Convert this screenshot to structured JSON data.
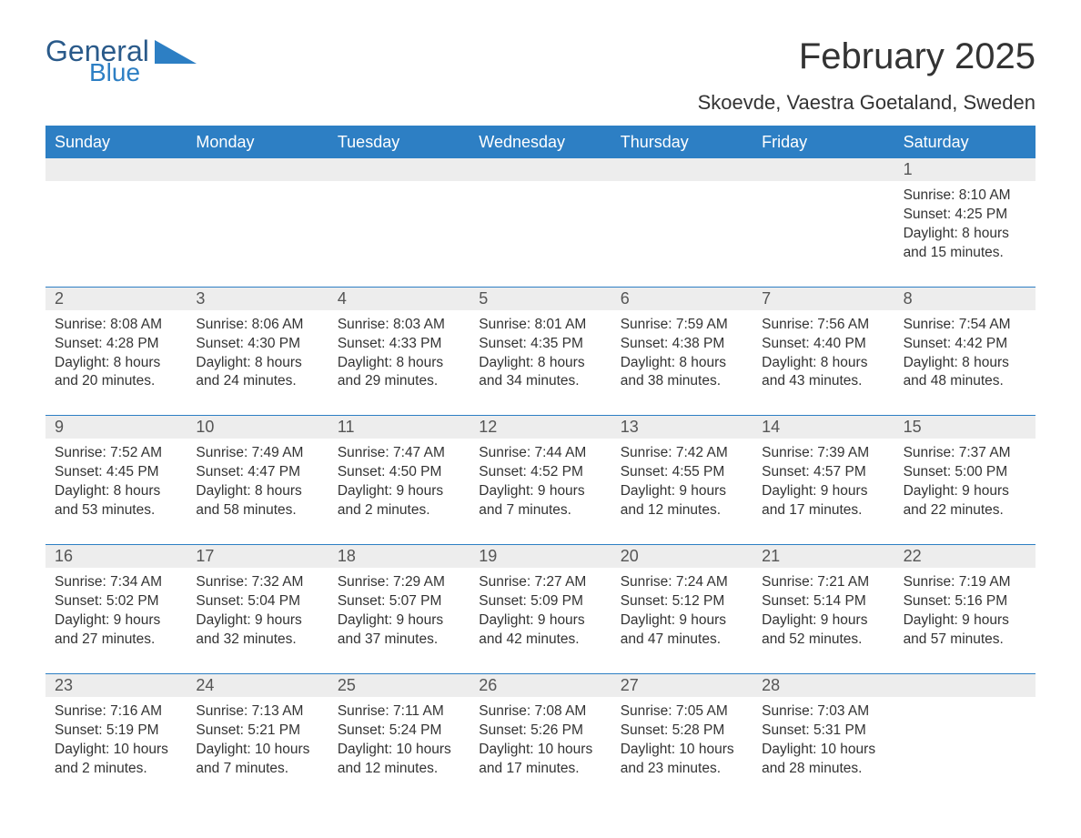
{
  "brand": {
    "word1": "General",
    "word2": "Blue",
    "word1_color": "#2a5a8a",
    "word2_color": "#2d7fc4",
    "tri_color": "#2d7fc4"
  },
  "title": "February 2025",
  "subtitle": "Skoevde, Vaestra Goetaland, Sweden",
  "colors": {
    "header_bg": "#2d7fc4",
    "header_text": "#ffffff",
    "daynum_bg": "#ededed",
    "rule": "#2d7fc4",
    "body_text": "#333333",
    "background": "#ffffff"
  },
  "typography": {
    "title_fontsize": 40,
    "subtitle_fontsize": 22,
    "dow_fontsize": 18,
    "daynum_fontsize": 18,
    "body_fontsize": 15.5,
    "font_family": "Segoe UI"
  },
  "dow": [
    "Sunday",
    "Monday",
    "Tuesday",
    "Wednesday",
    "Thursday",
    "Friday",
    "Saturday"
  ],
  "layout": {
    "columns": 7,
    "weeks": 5,
    "first_day_column": 6
  },
  "weeks": [
    [
      null,
      null,
      null,
      null,
      null,
      null,
      {
        "n": "1",
        "sunrise": "Sunrise: 8:10 AM",
        "sunset": "Sunset: 4:25 PM",
        "day1": "Daylight: 8 hours",
        "day2": "and 15 minutes."
      }
    ],
    [
      {
        "n": "2",
        "sunrise": "Sunrise: 8:08 AM",
        "sunset": "Sunset: 4:28 PM",
        "day1": "Daylight: 8 hours",
        "day2": "and 20 minutes."
      },
      {
        "n": "3",
        "sunrise": "Sunrise: 8:06 AM",
        "sunset": "Sunset: 4:30 PM",
        "day1": "Daylight: 8 hours",
        "day2": "and 24 minutes."
      },
      {
        "n": "4",
        "sunrise": "Sunrise: 8:03 AM",
        "sunset": "Sunset: 4:33 PM",
        "day1": "Daylight: 8 hours",
        "day2": "and 29 minutes."
      },
      {
        "n": "5",
        "sunrise": "Sunrise: 8:01 AM",
        "sunset": "Sunset: 4:35 PM",
        "day1": "Daylight: 8 hours",
        "day2": "and 34 minutes."
      },
      {
        "n": "6",
        "sunrise": "Sunrise: 7:59 AM",
        "sunset": "Sunset: 4:38 PM",
        "day1": "Daylight: 8 hours",
        "day2": "and 38 minutes."
      },
      {
        "n": "7",
        "sunrise": "Sunrise: 7:56 AM",
        "sunset": "Sunset: 4:40 PM",
        "day1": "Daylight: 8 hours",
        "day2": "and 43 minutes."
      },
      {
        "n": "8",
        "sunrise": "Sunrise: 7:54 AM",
        "sunset": "Sunset: 4:42 PM",
        "day1": "Daylight: 8 hours",
        "day2": "and 48 minutes."
      }
    ],
    [
      {
        "n": "9",
        "sunrise": "Sunrise: 7:52 AM",
        "sunset": "Sunset: 4:45 PM",
        "day1": "Daylight: 8 hours",
        "day2": "and 53 minutes."
      },
      {
        "n": "10",
        "sunrise": "Sunrise: 7:49 AM",
        "sunset": "Sunset: 4:47 PM",
        "day1": "Daylight: 8 hours",
        "day2": "and 58 minutes."
      },
      {
        "n": "11",
        "sunrise": "Sunrise: 7:47 AM",
        "sunset": "Sunset: 4:50 PM",
        "day1": "Daylight: 9 hours",
        "day2": "and 2 minutes."
      },
      {
        "n": "12",
        "sunrise": "Sunrise: 7:44 AM",
        "sunset": "Sunset: 4:52 PM",
        "day1": "Daylight: 9 hours",
        "day2": "and 7 minutes."
      },
      {
        "n": "13",
        "sunrise": "Sunrise: 7:42 AM",
        "sunset": "Sunset: 4:55 PM",
        "day1": "Daylight: 9 hours",
        "day2": "and 12 minutes."
      },
      {
        "n": "14",
        "sunrise": "Sunrise: 7:39 AM",
        "sunset": "Sunset: 4:57 PM",
        "day1": "Daylight: 9 hours",
        "day2": "and 17 minutes."
      },
      {
        "n": "15",
        "sunrise": "Sunrise: 7:37 AM",
        "sunset": "Sunset: 5:00 PM",
        "day1": "Daylight: 9 hours",
        "day2": "and 22 minutes."
      }
    ],
    [
      {
        "n": "16",
        "sunrise": "Sunrise: 7:34 AM",
        "sunset": "Sunset: 5:02 PM",
        "day1": "Daylight: 9 hours",
        "day2": "and 27 minutes."
      },
      {
        "n": "17",
        "sunrise": "Sunrise: 7:32 AM",
        "sunset": "Sunset: 5:04 PM",
        "day1": "Daylight: 9 hours",
        "day2": "and 32 minutes."
      },
      {
        "n": "18",
        "sunrise": "Sunrise: 7:29 AM",
        "sunset": "Sunset: 5:07 PM",
        "day1": "Daylight: 9 hours",
        "day2": "and 37 minutes."
      },
      {
        "n": "19",
        "sunrise": "Sunrise: 7:27 AM",
        "sunset": "Sunset: 5:09 PM",
        "day1": "Daylight: 9 hours",
        "day2": "and 42 minutes."
      },
      {
        "n": "20",
        "sunrise": "Sunrise: 7:24 AM",
        "sunset": "Sunset: 5:12 PM",
        "day1": "Daylight: 9 hours",
        "day2": "and 47 minutes."
      },
      {
        "n": "21",
        "sunrise": "Sunrise: 7:21 AM",
        "sunset": "Sunset: 5:14 PM",
        "day1": "Daylight: 9 hours",
        "day2": "and 52 minutes."
      },
      {
        "n": "22",
        "sunrise": "Sunrise: 7:19 AM",
        "sunset": "Sunset: 5:16 PM",
        "day1": "Daylight: 9 hours",
        "day2": "and 57 minutes."
      }
    ],
    [
      {
        "n": "23",
        "sunrise": "Sunrise: 7:16 AM",
        "sunset": "Sunset: 5:19 PM",
        "day1": "Daylight: 10 hours",
        "day2": "and 2 minutes."
      },
      {
        "n": "24",
        "sunrise": "Sunrise: 7:13 AM",
        "sunset": "Sunset: 5:21 PM",
        "day1": "Daylight: 10 hours",
        "day2": "and 7 minutes."
      },
      {
        "n": "25",
        "sunrise": "Sunrise: 7:11 AM",
        "sunset": "Sunset: 5:24 PM",
        "day1": "Daylight: 10 hours",
        "day2": "and 12 minutes."
      },
      {
        "n": "26",
        "sunrise": "Sunrise: 7:08 AM",
        "sunset": "Sunset: 5:26 PM",
        "day1": "Daylight: 10 hours",
        "day2": "and 17 minutes."
      },
      {
        "n": "27",
        "sunrise": "Sunrise: 7:05 AM",
        "sunset": "Sunset: 5:28 PM",
        "day1": "Daylight: 10 hours",
        "day2": "and 23 minutes."
      },
      {
        "n": "28",
        "sunrise": "Sunrise: 7:03 AM",
        "sunset": "Sunset: 5:31 PM",
        "day1": "Daylight: 10 hours",
        "day2": "and 28 minutes."
      },
      null
    ]
  ]
}
